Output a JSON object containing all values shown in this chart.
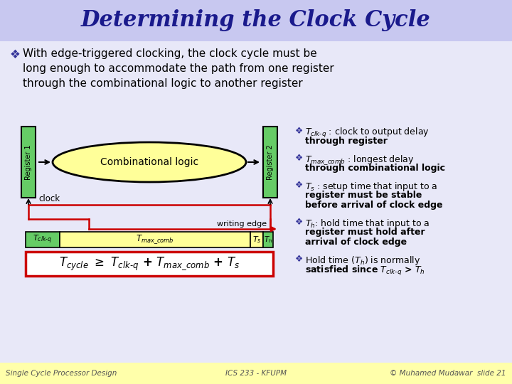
{
  "title": "Determining the Clock Cycle",
  "title_color": "#1a1a8c",
  "title_bg": "#c8c8f0",
  "bg_color": "#e8e8f8",
  "bullet_text_1": "With edge-triggered clocking, the clock cycle must be\nlong enough to accommodate the path from one register\nthrough the combinational logic to another register",
  "reg1_label": "Register 1",
  "reg2_label": "Register 2",
  "comb_label": "Combinational logic",
  "clock_label": "clock",
  "writing_edge_label": "writing edge",
  "reg_fill": "#66cc66",
  "comb_fill": "#ffff99",
  "bullet_items_text": [
    ": clock to output delay\nthrough register",
    ": longest delay\nthrough combinational logic",
    ": setup time that input to a\nregister must be stable\nbefore arrival of clock edge",
    ": hold time that input to a\nregister must hold after\narrival of clock edge",
    " is normally\nsatisfied since T"
  ],
  "footer_left": "Single Cycle Processor Design",
  "footer_center": "ICS 233 - KFUPM",
  "footer_right": "© Muhamed Mudawar  slide 21",
  "footer_bg": "#ffffaa",
  "red_color": "#cc0000",
  "white_color": "#ffffff",
  "black_color": "#000000",
  "bullet_color": "#333399"
}
